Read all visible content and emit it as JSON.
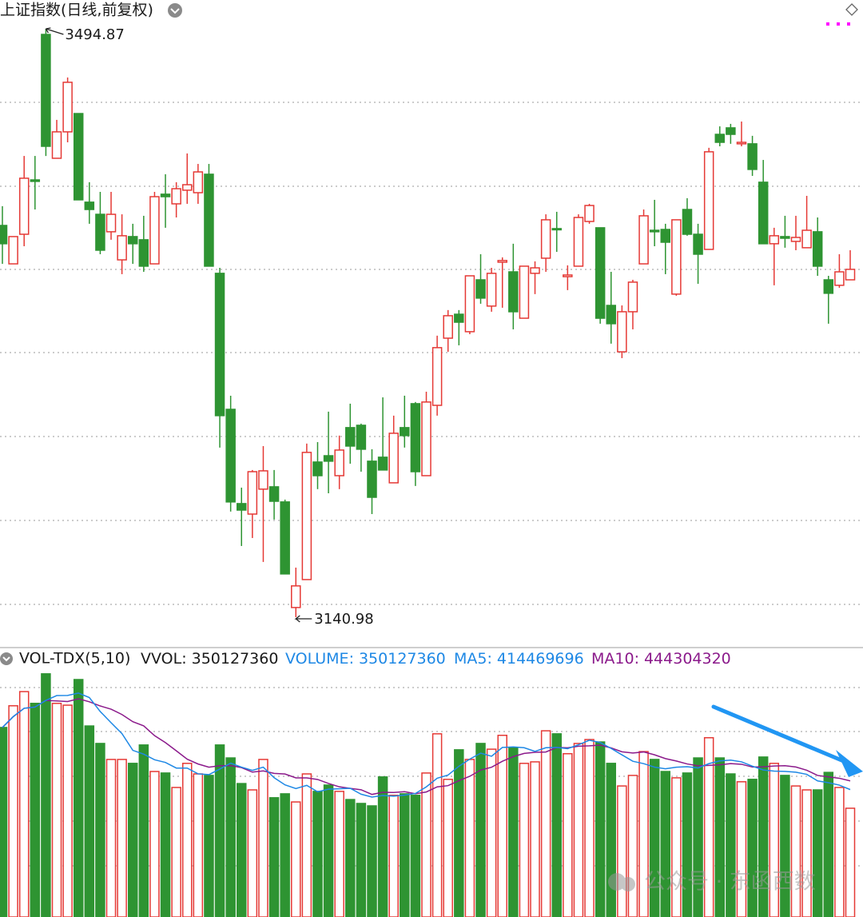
{
  "chart_data": {
    "type": "candlestick",
    "title": "上证指数(日线,前复权)",
    "up_color": "#e53935",
    "down_color": "#2e9432",
    "ylim": [
      3122.7,
      3512.2
    ],
    "candles": {
      "open": [
        3376.6,
        3353.5,
        3371.3,
        3404.0,
        3491.5,
        3417.0,
        3432.9,
        3443.9,
        3390.6,
        3383.3,
        3372.8,
        3355.9,
        3369.9,
        3368.0,
        3353.5,
        3395.4,
        3389.6,
        3397.8,
        3396.3,
        3407.4,
        3347.8,
        3266.0,
        3209.3,
        3203.0,
        3218.0,
        3219.4,
        3210.3,
        3146.8,
        3163.6,
        3234.3,
        3238.1,
        3226.1,
        3255.0,
        3256.4,
        3234.8,
        3237.2,
        3221.8,
        3255.0,
        3269.4,
        3226.1,
        3268.4,
        3308.8,
        3323.2,
        3312.7,
        3343.9,
        3328.1,
        3354.5,
        3348.7,
        3320.8,
        3347.8,
        3356.9,
        3374.7,
        3345.8,
        3352.1,
        3379.0,
        3375.2,
        3328.5,
        3300.6,
        3324.7,
        3353.5,
        3373.7,
        3374.2,
        3335.3,
        3386.2,
        3371.3,
        3362.2,
        3431.4,
        3435.3,
        3425.7,
        3425.7,
        3402.6,
        3365.6,
        3369.9,
        3367.0,
        3363.2,
        3372.8,
        3343.9,
        3340.6,
        3343.9
      ],
      "high": [
        3388.2,
        3369.9,
        3418.4,
        3418.4,
        3494.87,
        3440.1,
        3465.6,
        3443.9,
        3402.6,
        3396.8,
        3396.8,
        3383.3,
        3377.6,
        3382.4,
        3396.8,
        3407.4,
        3402.6,
        3419.9,
        3413.6,
        3413.6,
        3351.1,
        3274.2,
        3218.9,
        3229.5,
        3243.9,
        3229.5,
        3211.7,
        3170.8,
        3245.4,
        3246.3,
        3264.6,
        3250.2,
        3269.4,
        3257.4,
        3242.0,
        3273.2,
        3262.2,
        3274.2,
        3270.4,
        3276.6,
        3310.3,
        3325.7,
        3325.7,
        3346.3,
        3359.3,
        3351.1,
        3357.4,
        3365.6,
        3352.1,
        3355.0,
        3383.3,
        3384.8,
        3352.6,
        3383.3,
        3389.6,
        3375.2,
        3348.7,
        3328.5,
        3343.9,
        3386.2,
        3392.0,
        3377.6,
        3380.0,
        3393.0,
        3377.6,
        3423.3,
        3436.2,
        3437.7,
        3439.1,
        3430.5,
        3416.0,
        3375.2,
        3382.4,
        3382.4,
        3394.4,
        3381.4,
        3346.3,
        3359.3,
        3361.7
      ],
      "low": [
        3353.5,
        3353.5,
        3364.1,
        3386.2,
        3418.4,
        3417.0,
        3426.6,
        3392.0,
        3377.6,
        3359.3,
        3368.0,
        3347.3,
        3353.5,
        3348.7,
        3353.5,
        3375.2,
        3381.4,
        3389.6,
        3389.6,
        3352.1,
        3243.0,
        3204.5,
        3183.8,
        3188.6,
        3174.2,
        3199.7,
        3167.0,
        3140.98,
        3163.6,
        3218.0,
        3215.5,
        3218.0,
        3233.3,
        3228.5,
        3203.0,
        3229.5,
        3221.8,
        3243.0,
        3219.9,
        3226.1,
        3262.2,
        3300.6,
        3304.5,
        3311.2,
        3329.5,
        3324.7,
        3327.1,
        3314.1,
        3320.8,
        3335.3,
        3348.7,
        3360.7,
        3337.7,
        3352.1,
        3377.6,
        3317.5,
        3305.5,
        3296.8,
        3314.1,
        3353.5,
        3364.1,
        3347.3,
        3334.3,
        3370.4,
        3341.5,
        3362.2,
        3424.2,
        3425.7,
        3424.2,
        3406.4,
        3365.6,
        3340.6,
        3363.2,
        3361.7,
        3363.2,
        3346.3,
        3317.5,
        3339.1,
        3343.9
      ],
      "close": [
        3365.6,
        3369.9,
        3405.0,
        3403.1,
        3424.2,
        3432.9,
        3462.7,
        3392.0,
        3386.2,
        3361.7,
        3383.3,
        3370.4,
        3365.6,
        3352.1,
        3393.9,
        3393.9,
        3398.7,
        3401.1,
        3408.8,
        3352.1,
        3262.2,
        3210.3,
        3205.4,
        3228.5,
        3229.0,
        3210.7,
        3167.0,
        3159.8,
        3240.1,
        3226.1,
        3234.8,
        3241.5,
        3243.9,
        3242.0,
        3213.1,
        3229.5,
        3251.6,
        3250.2,
        3228.5,
        3270.4,
        3303.1,
        3322.3,
        3318.4,
        3346.3,
        3332.9,
        3347.8,
        3355.5,
        3324.7,
        3352.1,
        3351.1,
        3380.0,
        3374.2,
        3346.8,
        3381.4,
        3388.6,
        3320.8,
        3317.5,
        3324.7,
        3342.5,
        3382.4,
        3372.8,
        3366.5,
        3380.0,
        3371.3,
        3359.3,
        3420.9,
        3426.6,
        3431.4,
        3426.6,
        3410.3,
        3365.6,
        3370.4,
        3368.9,
        3369.4,
        3373.7,
        3352.1,
        3335.8,
        3348.7,
        3350.2
      ]
    },
    "volume": {
      "title": "VOL-TDX(5,10)",
      "ylim": [
        0,
        830000000
      ],
      "ma5_color": "#1e88e5",
      "ma10_color": "#8b1a8b",
      "indicators": [
        {
          "label": "VVOL:",
          "value": 350127360,
          "color": "#1a1a1a"
        },
        {
          "label": "VOLUME:",
          "value": 350127360,
          "color": "#1e88e5"
        },
        {
          "label": "MA5:",
          "value": 414469696,
          "color": "#1e88e5"
        },
        {
          "label": "MA10:",
          "value": 444304320,
          "color": "#8b1a8b"
        }
      ],
      "values": [
        618000000,
        690000000,
        737000000,
        698000000,
        796000000,
        698000000,
        692000000,
        777000000,
        623000000,
        565000000,
        512000000,
        512000000,
        499000000,
        560000000,
        472000000,
        467000000,
        419000000,
        499000000,
        464000000,
        459000000,
        560000000,
        517000000,
        432000000,
        411000000,
        512000000,
        385000000,
        398000000,
        371000000,
        464000000,
        406000000,
        427000000,
        406000000,
        379000000,
        366000000,
        358000000,
        454000000,
        393000000,
        398000000,
        393000000,
        467000000,
        597000000,
        446000000,
        544000000,
        512000000,
        565000000,
        546000000,
        592000000,
        552000000,
        499000000,
        504000000,
        607000000,
        597000000,
        531000000,
        565000000,
        578000000,
        570000000,
        499000000,
        424000000,
        459000000,
        538000000,
        512000000,
        472000000,
        451000000,
        467000000,
        517000000,
        584000000,
        517000000,
        464000000,
        438000000,
        446000000,
        520000000,
        499000000,
        459000000,
        424000000,
        411000000,
        411000000,
        469000000,
        419000000,
        350127360
      ]
    },
    "watermark": "公众号 · 东函西数"
  }
}
